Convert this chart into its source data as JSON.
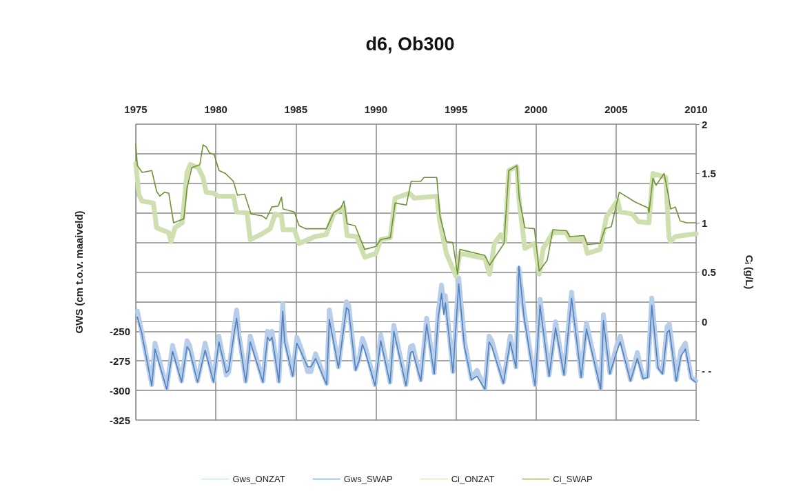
{
  "chart_data": {
    "type": "line",
    "title": "d6, Ob300",
    "ylabel": "GWS (cm t.o.v. maaiveld)",
    "y2label": "Cᵢ (g/L)",
    "xlim": [
      1975,
      2010
    ],
    "xticks": [
      1975,
      1980,
      1985,
      1990,
      1995,
      2000,
      2005,
      2010
    ],
    "ylim": [
      -325,
      -75
    ],
    "yticks": [
      -325,
      -300,
      -275,
      -250,
      {
        "value": -225,
        "label": null
      },
      {
        "value": -200,
        "label": null
      },
      {
        "value": -175,
        "label": null
      },
      {
        "value": -150,
        "label": null
      },
      {
        "value": -125,
        "label": null
      },
      {
        "value": -100,
        "label": null
      },
      {
        "value": -75,
        "label": null
      }
    ],
    "y2lim": [
      -1,
      2
    ],
    "y2ticks": [
      {
        "value": -1,
        "label": null
      },
      {
        "value": -0.5,
        "label": "- -"
      },
      0,
      0.5,
      1,
      1.5,
      2
    ],
    "grid": true,
    "legend": "bottom",
    "marker": "none",
    "line_style": "solid",
    "series": [
      {
        "name": "Gws_ONZAT",
        "color": "#b8cdea",
        "x": [
          1975.1,
          1975.36,
          1976.0,
          1976.2,
          1976.93,
          1977.3,
          1977.86,
          1978.2,
          1978.36,
          1978.86,
          1979.33,
          1979.86,
          1980.19,
          1980.65,
          1980.8,
          1981.15,
          1981.3,
          1981.44,
          1981.87,
          1982.15,
          1982.94,
          1983.23,
          1983.37,
          1983.51,
          1983.94,
          1984.18,
          1984.3,
          1984.8,
          1985.06,
          1985.37,
          1985.73,
          1985.94,
          1986.23,
          1986.92,
          1987.09,
          1987.66,
          1988.16,
          1988.3,
          1988.73,
          1988.95,
          1989.16,
          1989.3,
          1989.95,
          1990.3,
          1990.88,
          1991.12,
          1991.88,
          1992.16,
          1992.3,
          1992.8,
          1993.17,
          1993.64,
          1993.88,
          1994.1,
          1994.24,
          1994.34,
          1994.81,
          1995.17,
          1995.53,
          1995.96,
          1996.31,
          1996.81,
          1997.07,
          1997.24,
          1997.96,
          1998.39,
          1998.75,
          1998.93,
          1999.25,
          1999.94,
          2000.25,
          2000.82,
          2001.22,
          2001.75,
          2002.22,
          2002.82,
          2003.15,
          2004.04,
          2004.21,
          2004.61,
          2005.04,
          2005.26,
          2005.9,
          2006.33,
          2006.69,
          2006.97,
          2007.23,
          2007.62,
          2007.9,
          2008.19,
          2008.33,
          2008.76,
          2009.05,
          2009.33,
          2009.69,
          2009.98
        ],
        "values": [
          -233,
          -250,
          -295,
          -260,
          -298,
          -262,
          -292,
          -258,
          -262,
          -292,
          -260,
          -292,
          -254,
          -287,
          -285,
          -246,
          -232,
          -252,
          -292,
          -254,
          -292,
          -250,
          -254,
          -250,
          -292,
          -227,
          -255,
          -287,
          -255,
          -266,
          -284,
          -284,
          -269,
          -294,
          -232,
          -280,
          -225,
          -228,
          -282,
          -273,
          -256,
          -261,
          -295,
          -253,
          -293,
          -245,
          -295,
          -263,
          -262,
          -291,
          -239,
          -285,
          -235,
          -211,
          -230,
          -220,
          -284,
          -205,
          -258,
          -290,
          -283,
          -298,
          -254,
          -258,
          -293,
          -254,
          -280,
          -197,
          -233,
          -295,
          -223,
          -287,
          -242,
          -286,
          -217,
          -288,
          -243,
          -298,
          -236,
          -285,
          -262,
          -254,
          -291,
          -268,
          -289,
          -288,
          -222,
          -280,
          -285,
          -246,
          -244,
          -291,
          -266,
          -260,
          -289,
          -292
        ]
      },
      {
        "name": "Gws_SWAP",
        "color": "#4f81bd",
        "x": [
          1975.1,
          1975.36,
          1976.0,
          1976.2,
          1976.93,
          1977.3,
          1977.86,
          1978.2,
          1978.36,
          1978.86,
          1979.33,
          1979.86,
          1980.19,
          1980.65,
          1980.8,
          1981.15,
          1981.3,
          1981.44,
          1981.87,
          1982.15,
          1982.94,
          1983.23,
          1983.37,
          1983.51,
          1983.94,
          1984.18,
          1984.3,
          1984.8,
          1985.06,
          1985.37,
          1985.73,
          1985.94,
          1986.23,
          1986.92,
          1987.09,
          1987.66,
          1988.16,
          1988.3,
          1988.73,
          1988.95,
          1989.16,
          1989.3,
          1989.95,
          1990.3,
          1990.88,
          1991.12,
          1991.88,
          1992.16,
          1992.3,
          1992.8,
          1993.17,
          1993.64,
          1993.88,
          1994.1,
          1994.24,
          1994.34,
          1994.81,
          1995.17,
          1995.53,
          1995.96,
          1996.31,
          1996.81,
          1997.07,
          1997.24,
          1997.96,
          1998.39,
          1998.75,
          1998.93,
          1999.25,
          1999.94,
          2000.25,
          2000.82,
          2001.22,
          2001.75,
          2002.22,
          2002.82,
          2003.15,
          2004.04,
          2004.21,
          2004.61,
          2005.04,
          2005.26,
          2005.9,
          2006.33,
          2006.69,
          2006.97,
          2007.23,
          2007.62,
          2007.9,
          2008.19,
          2008.33,
          2008.76,
          2009.05,
          2009.33,
          2009.69,
          2009.98
        ],
        "values": [
          -238,
          -251,
          -296,
          -265,
          -299,
          -267,
          -293,
          -263,
          -266,
          -293,
          -266,
          -293,
          -259,
          -285,
          -283,
          -251,
          -239,
          -255,
          -293,
          -259,
          -293,
          -255,
          -258,
          -255,
          -293,
          -233,
          -259,
          -288,
          -260,
          -269,
          -280,
          -280,
          -273,
          -295,
          -240,
          -281,
          -230,
          -232,
          -283,
          -275,
          -261,
          -266,
          -296,
          -258,
          -294,
          -250,
          -296,
          -268,
          -267,
          -292,
          -244,
          -286,
          -240,
          -218,
          -236,
          -226,
          -285,
          -210,
          -263,
          -291,
          -288,
          -299,
          -259,
          -263,
          -294,
          -259,
          -281,
          -195,
          -238,
          -296,
          -228,
          -288,
          -247,
          -287,
          -222,
          -289,
          -248,
          -299,
          -241,
          -286,
          -267,
          -259,
          -292,
          -273,
          -290,
          -289,
          -228,
          -281,
          -286,
          -251,
          -249,
          -292,
          -271,
          -265,
          -290,
          -293
        ]
      },
      {
        "name": "Ci_ONZAT",
        "color": "#cfdfb0",
        "axis": "y2",
        "x": [
          1975.0,
          1975.2,
          1975.4,
          1976.1,
          1976.3,
          1976.6,
          1977.06,
          1977.2,
          1977.45,
          1977.9,
          1978.2,
          1978.4,
          1978.9,
          1979.2,
          1979.4,
          1979.85,
          1980.15,
          1981.1,
          1981.3,
          1981.95,
          1982.15,
          1982.8,
          1983.4,
          1983.7,
          1984.1,
          1984.2,
          1984.9,
          1985.2,
          1986.2,
          1986.9,
          1987.35,
          1988.0,
          1988.2,
          1988.8,
          1989.3,
          1990.0,
          1990.3,
          1990.9,
          1991.2,
          1992.1,
          1992.4,
          1993.8,
          1994.0,
          1994.4,
          1995.0,
          1995.25,
          1996.8,
          1997.1,
          1997.4,
          1997.8,
          1998.05,
          1998.3,
          1998.8,
          1998.95,
          1999.3,
          1999.9,
          2000.2,
          2000.45,
          2001.05,
          2001.9,
          2002.1,
          2003.0,
          2003.2,
          2004.0,
          2004.4,
          2005.1,
          2005.25,
          2006.0,
          2006.4,
          2007.05,
          2007.3,
          2008.1,
          2008.3,
          2008.4,
          2008.7,
          2010.0
        ],
        "values": [
          1.6,
          1.28,
          1.22,
          1.2,
          0.95,
          0.93,
          0.9,
          0.81,
          0.95,
          1.0,
          1.51,
          1.59,
          1.56,
          1.46,
          1.31,
          1.3,
          1.27,
          1.27,
          1.11,
          1.1,
          0.83,
          0.88,
          0.94,
          1.09,
          1.07,
          0.93,
          0.93,
          0.79,
          0.86,
          0.88,
          1.09,
          1.16,
          0.87,
          0.86,
          0.65,
          0.69,
          0.83,
          0.85,
          1.25,
          1.3,
          1.25,
          1.27,
          1.0,
          0.69,
          0.46,
          0.69,
          0.64,
          0.48,
          0.79,
          0.88,
          0.81,
          1.53,
          1.57,
          1.21,
          0.74,
          0.79,
          0.48,
          0.74,
          0.9,
          0.9,
          0.83,
          0.83,
          0.69,
          0.73,
          1.06,
          1.23,
          1.11,
          1.09,
          1.01,
          1.0,
          1.5,
          1.46,
          0.86,
          0.81,
          0.86,
          0.89
        ]
      },
      {
        "name": "Ci_SWAP",
        "color": "#6f9234",
        "axis": "y2",
        "x": [
          1975.0,
          1975.1,
          1975.4,
          1976.0,
          1976.3,
          1976.5,
          1976.8,
          1977.06,
          1977.36,
          1978.0,
          1978.2,
          1978.5,
          1979.0,
          1979.2,
          1979.4,
          1979.6,
          1979.9,
          1980.2,
          1980.6,
          1981.1,
          1981.35,
          1981.8,
          1982.2,
          1982.9,
          1983.15,
          1983.5,
          1983.9,
          1984.1,
          1984.2,
          1984.9,
          1985.2,
          1985.6,
          1986.9,
          1987.35,
          1987.8,
          1988.0,
          1988.2,
          1988.7,
          1989.3,
          1990.0,
          1990.3,
          1990.9,
          1991.2,
          1991.9,
          1992.2,
          1992.8,
          1993.0,
          1993.8,
          1994.0,
          1994.4,
          1994.8,
          1995.1,
          1995.25,
          1996.8,
          1997.1,
          1998.0,
          1998.3,
          1998.8,
          1998.95,
          1999.3,
          1999.9,
          2000.2,
          2000.7,
          2001.05,
          2001.9,
          2002.1,
          2003.0,
          2003.2,
          2004.0,
          2004.3,
          2004.7,
          2005.2,
          2006.2,
          2007.0,
          2007.05,
          2007.3,
          2007.5,
          2008.0,
          2008.3,
          2008.4,
          2008.7,
          2009.0,
          2009.4,
          2010.0
        ],
        "values": [
          1.8,
          1.58,
          1.51,
          1.53,
          1.32,
          1.27,
          1.31,
          1.3,
          1.0,
          1.04,
          1.35,
          1.56,
          1.59,
          1.79,
          1.77,
          1.71,
          1.69,
          1.53,
          1.5,
          1.42,
          1.28,
          1.29,
          1.09,
          1.07,
          1.04,
          1.16,
          1.17,
          1.26,
          1.14,
          1.11,
          0.97,
          0.94,
          0.94,
          1.1,
          1.15,
          1.22,
          0.99,
          0.97,
          0.73,
          0.76,
          0.83,
          0.85,
          1.2,
          1.18,
          1.42,
          1.42,
          1.46,
          1.46,
          1.07,
          0.81,
          0.8,
          0.48,
          0.73,
          0.67,
          0.57,
          0.79,
          1.53,
          1.58,
          1.25,
          0.95,
          0.94,
          0.51,
          0.62,
          0.93,
          0.92,
          0.86,
          0.87,
          0.78,
          0.79,
          0.94,
          0.96,
          1.31,
          1.21,
          1.15,
          1.1,
          1.45,
          1.38,
          1.5,
          1.25,
          1.14,
          1.16,
          1.02,
          1.0,
          1.0
        ]
      }
    ]
  }
}
